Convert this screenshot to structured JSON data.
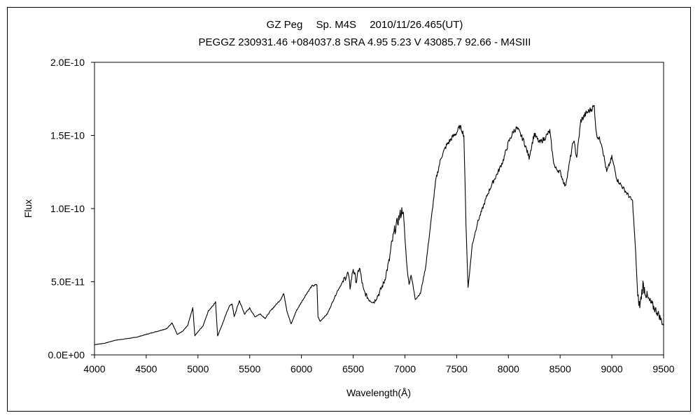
{
  "chart_data": {
    "type": "line",
    "title": "GZ Peg　 Sp. M4S　 2010/11/26.465(UT)",
    "subtitle": "PEGGZ 230931.46 +084037.8 SRA 4.95 5.23 V 43085.7 92.66 - M4SIII",
    "xlabel": "Wavelength(Å)",
    "ylabel": "Flux",
    "xlim": [
      4000,
      9500
    ],
    "ylim": [
      0,
      2e-10
    ],
    "grid": false,
    "legend": "none",
    "line_color": "#000000",
    "x_ticks": [
      4000,
      4500,
      5000,
      5500,
      6000,
      6500,
      7000,
      7500,
      8000,
      8500,
      9000,
      9500
    ],
    "x_tick_labels": [
      "4000",
      "4500",
      "5000",
      "5500",
      "6000",
      "6500",
      "7000",
      "7500",
      "8000",
      "8500",
      "9000",
      "9500"
    ],
    "y_ticks": [
      0,
      5e-11,
      1e-10,
      1.5e-10,
      2e-10
    ],
    "y_tick_labels": [
      "0.0E+00",
      "5.0E-11",
      "1.0E-10",
      "1.5E-10",
      "2.0E-10"
    ],
    "series": [
      {
        "x": [
          4000,
          4100,
          4200,
          4300,
          4400,
          4500,
          4600,
          4700,
          4750,
          4800,
          4850,
          4900,
          4950,
          4970,
          4990,
          5050,
          5100,
          5170,
          5190,
          5230,
          5300,
          5330,
          5350,
          5400,
          5450,
          5500,
          5550,
          5600,
          5650,
          5700,
          5750,
          5800,
          5830,
          5860,
          5900,
          5950,
          6000,
          6050,
          6100,
          6150,
          6160,
          6180,
          6250,
          6300,
          6350,
          6400,
          6450,
          6470,
          6500,
          6530,
          6560,
          6600,
          6650,
          6700,
          6750,
          6800,
          6850,
          6870,
          6900,
          6950,
          6980,
          7020,
          7040,
          7060,
          7100,
          7150,
          7200,
          7250,
          7300,
          7350,
          7400,
          7450,
          7500,
          7530,
          7550,
          7570,
          7590,
          7610,
          7630,
          7650,
          7700,
          7750,
          7800,
          7850,
          7900,
          7950,
          8000,
          8050,
          8080,
          8100,
          8150,
          8200,
          8250,
          8300,
          8350,
          8400,
          8430,
          8450,
          8500,
          8550,
          8600,
          8630,
          8660,
          8700,
          8750,
          8800,
          8830,
          8850,
          8900,
          8950,
          9000,
          9050,
          9100,
          9150,
          9200,
          9230,
          9250,
          9270,
          9300,
          9350,
          9400,
          9450,
          9500
        ],
        "y": [
          7e-12,
          8e-12,
          1e-11,
          1.1e-11,
          1.2e-11,
          1.4e-11,
          1.6e-11,
          1.8e-11,
          2.2e-11,
          1.4e-11,
          1.6e-11,
          2e-11,
          3.2e-11,
          1.3e-11,
          1.5e-11,
          2e-11,
          3e-11,
          3.6e-11,
          1.3e-11,
          2e-11,
          3.3e-11,
          3.5e-11,
          2.6e-11,
          3.7e-11,
          2.8e-11,
          3.2e-11,
          2.6e-11,
          2.8e-11,
          2.5e-11,
          3e-11,
          3.4e-11,
          3.8e-11,
          4.2e-11,
          3e-11,
          2.1e-11,
          3e-11,
          3.6e-11,
          4.2e-11,
          4.7e-11,
          4.8e-11,
          2.6e-11,
          2.3e-11,
          2.8e-11,
          3.6e-11,
          4.4e-11,
          5e-11,
          5.6e-11,
          4.6e-11,
          5.9e-11,
          5e-11,
          6e-11,
          4.4e-11,
          3.8e-11,
          3.6e-11,
          4.2e-11,
          5e-11,
          6.5e-11,
          7.5e-11,
          8.5e-11,
          9.5e-11,
          1e-10,
          6e-11,
          4.8e-11,
          5.5e-11,
          3.8e-11,
          4.2e-11,
          6e-11,
          9e-11,
          1.2e-10,
          1.35e-10,
          1.43e-10,
          1.48e-10,
          1.52e-10,
          1.56e-10,
          1.54e-10,
          1.5e-10,
          9e-11,
          4.6e-11,
          6e-11,
          7.5e-11,
          9e-11,
          1e-10,
          1.1e-10,
          1.18e-10,
          1.25e-10,
          1.33e-10,
          1.45e-10,
          1.53e-10,
          1.55e-10,
          1.53e-10,
          1.46e-10,
          1.35e-10,
          1.51e-10,
          1.45e-10,
          1.48e-10,
          1.53e-10,
          1.35e-10,
          1.28e-10,
          1.25e-10,
          1.15e-10,
          1.35e-10,
          1.47e-10,
          1.35e-10,
          1.6e-10,
          1.65e-10,
          1.68e-10,
          1.7e-10,
          1.51e-10,
          1.45e-10,
          1.25e-10,
          1.35e-10,
          1.2e-10,
          1.15e-10,
          1.1e-10,
          1.05e-10,
          7e-11,
          4e-11,
          3.3e-11,
          4.8e-11,
          3.8e-11,
          3.3e-11,
          2.8e-11,
          2e-11
        ]
      }
    ]
  }
}
